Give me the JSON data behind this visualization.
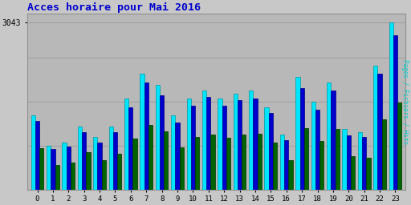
{
  "title": "Acces horaire pour Mai 2016",
  "title_color": "#0000cc",
  "ylabel_right": "Pages / Fichiers / Hits",
  "background_color": "#c8c8c8",
  "plot_bg_color": "#b8b8b8",
  "hours": [
    0,
    1,
    2,
    3,
    4,
    5,
    6,
    7,
    8,
    9,
    10,
    11,
    12,
    13,
    14,
    15,
    16,
    17,
    18,
    19,
    20,
    21,
    22,
    23
  ],
  "hits": [
    1350,
    800,
    850,
    1150,
    950,
    1150,
    1650,
    2100,
    1900,
    1350,
    1650,
    1800,
    1650,
    1750,
    1800,
    1500,
    1000,
    2050,
    1600,
    1950,
    1100,
    1050,
    2250,
    3043
  ],
  "fichiers": [
    1250,
    730,
    780,
    1050,
    850,
    1050,
    1500,
    1950,
    1720,
    1220,
    1530,
    1680,
    1520,
    1620,
    1660,
    1400,
    900,
    1850,
    1450,
    1800,
    980,
    950,
    2100,
    2800
  ],
  "pages": [
    750,
    440,
    490,
    680,
    530,
    650,
    920,
    1170,
    1060,
    760,
    950,
    1000,
    940,
    1000,
    1020,
    850,
    540,
    1120,
    890,
    1100,
    600,
    580,
    1280,
    1580
  ],
  "color_hits": "#00e5ff",
  "color_fichiers": "#0000cd",
  "color_pages": "#006400",
  "bar_width": 0.27,
  "ylim": [
    0,
    3200
  ],
  "yticks": [
    3043
  ],
  "ytick_labels": [
    "3043"
  ],
  "grid_levels": [
    800,
    1600,
    2400,
    3043
  ],
  "font_family": "monospace"
}
